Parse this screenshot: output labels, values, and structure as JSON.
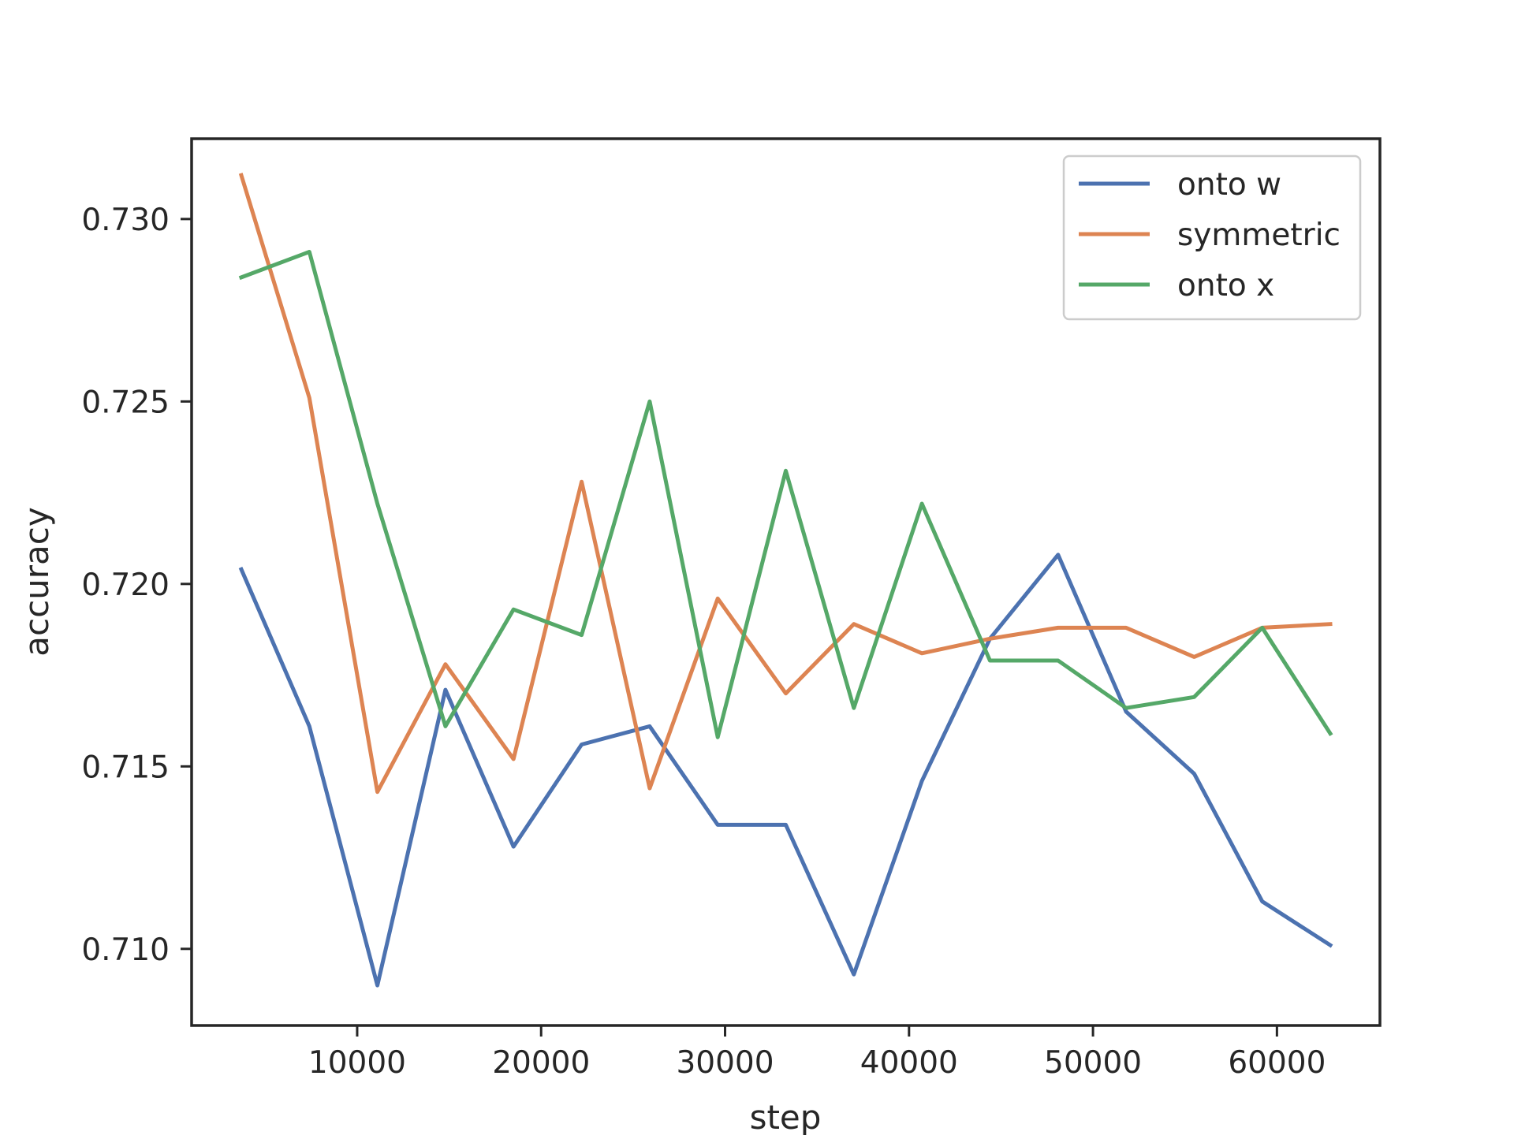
{
  "chart_data": {
    "type": "line",
    "title": "",
    "xlabel": "step",
    "ylabel": "accuracy",
    "xlim": [
      1000,
      65600
    ],
    "ylim": [
      0.7079,
      0.7322
    ],
    "xticks": [
      10000,
      20000,
      30000,
      40000,
      50000,
      60000
    ],
    "xtick_labels": [
      "10000",
      "20000",
      "30000",
      "40000",
      "50000",
      "60000"
    ],
    "yticks": [
      0.71,
      0.715,
      0.72,
      0.725,
      0.73
    ],
    "ytick_labels": [
      "0.710",
      "0.715",
      "0.720",
      "0.725",
      "0.730"
    ],
    "grid": false,
    "legend_position": "top-right",
    "x": [
      3700,
      7400,
      11100,
      14800,
      18500,
      22200,
      25900,
      29600,
      33300,
      37000,
      40700,
      44400,
      48100,
      51800,
      55500,
      59200,
      62900
    ],
    "series": [
      {
        "name": "onto w",
        "color": "#4c72b0",
        "values": [
          0.7204,
          0.7161,
          0.709,
          0.7171,
          0.7128,
          0.7156,
          0.7161,
          0.7134,
          0.7134,
          0.7093,
          0.7146,
          0.7185,
          0.7208,
          0.7165,
          0.7148,
          0.7113,
          0.7101
        ]
      },
      {
        "name": "symmetric",
        "color": "#dd8452",
        "values": [
          0.7312,
          0.7251,
          0.7143,
          0.7178,
          0.7152,
          0.7228,
          0.7144,
          0.7196,
          0.717,
          0.7189,
          0.7181,
          0.7185,
          0.7188,
          0.7188,
          0.718,
          0.7188,
          0.7189
        ]
      },
      {
        "name": "onto x",
        "color": "#55a868",
        "values": [
          0.7284,
          0.7291,
          0.7222,
          0.7161,
          0.7193,
          0.7186,
          0.725,
          0.7158,
          0.7231,
          0.7166,
          0.7222,
          0.7179,
          0.7179,
          0.7166,
          0.7169,
          0.7188,
          0.7159
        ]
      }
    ]
  }
}
